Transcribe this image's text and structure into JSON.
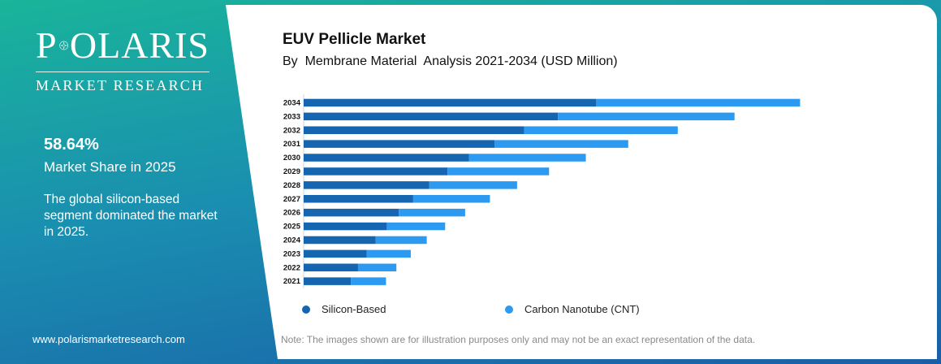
{
  "brand": {
    "logo_name": "POLARIS",
    "logo_sub": "MARKET RESEARCH",
    "website": "www.polarismarketresearch.com"
  },
  "highlight": {
    "value": "58.64%",
    "label": "Market Share in 2025",
    "description": "The global silicon-based segment dominated the market in 2025."
  },
  "note": "Note: The images shown are for illustration purposes only and may not be an exact representation of the data.",
  "colors": {
    "silicon": "#1565b0",
    "cnt": "#2c9af0"
  },
  "chart_data": {
    "type": "bar",
    "orientation": "horizontal",
    "stacked": true,
    "title": "EUV Pellicle Market",
    "subtitle": "By  Membrane Material  Analysis 2021-2034 (USD Million)",
    "categories": [
      "2034",
      "2033",
      "2032",
      "2031",
      "2030",
      "2029",
      "2028",
      "2027",
      "2026",
      "2025",
      "2024",
      "2023",
      "2022",
      "2021"
    ],
    "series": [
      {
        "name": "Silicon-Based",
        "values": [
          366,
          318,
          276,
          239,
          207,
          180,
          157,
          137,
          119,
          104,
          90,
          79,
          68,
          59
        ]
      },
      {
        "name": "Carbon Nanotube (CNT)",
        "values": [
          255,
          221,
          192,
          167,
          146,
          127,
          110,
          96,
          83,
          73,
          64,
          55,
          48,
          44
        ]
      }
    ],
    "xlim": [
      0,
      650
    ],
    "grid": false,
    "axis_values_shown": false,
    "legend_position": "bottom"
  }
}
